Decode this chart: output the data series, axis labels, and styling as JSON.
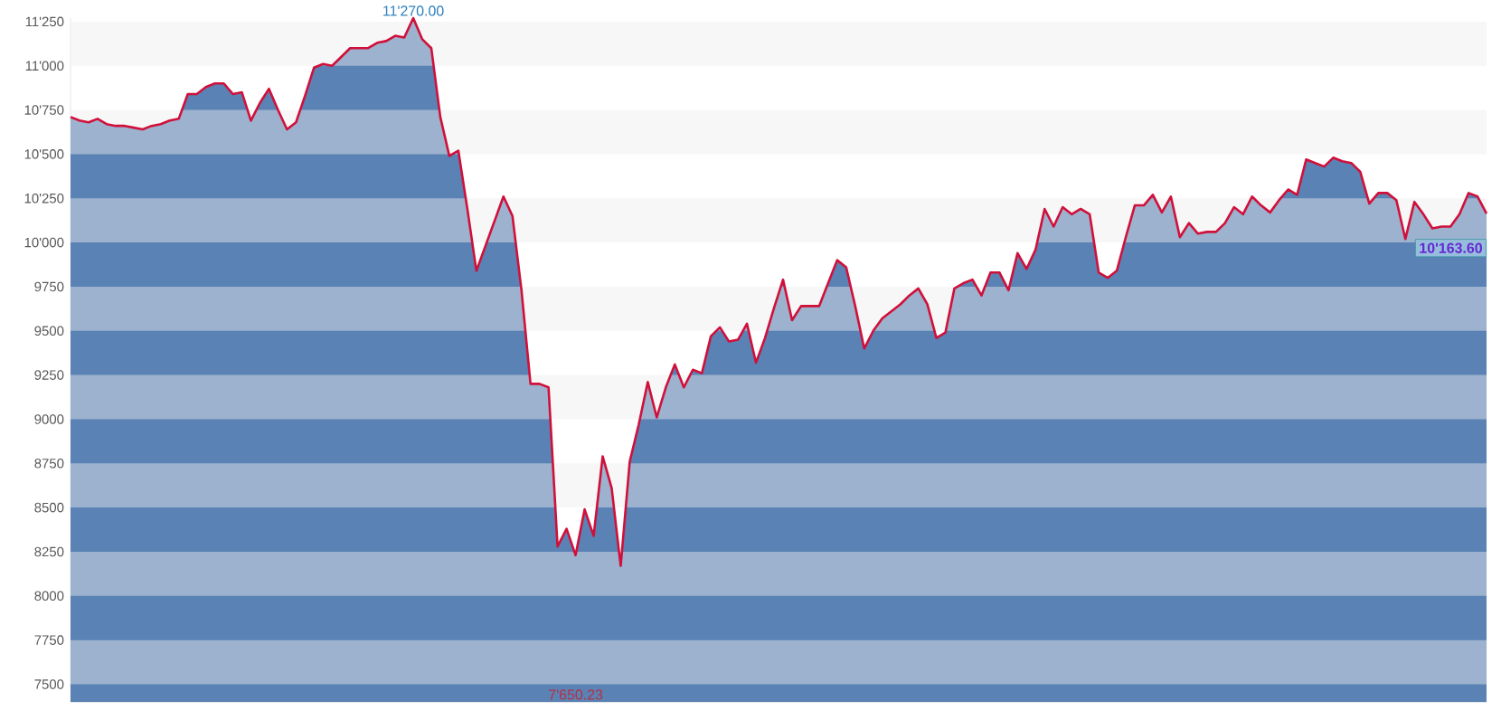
{
  "chart_data": {
    "type": "area",
    "categories": [
      null,
      null,
      null,
      null,
      null,
      null,
      null,
      null,
      null,
      null,
      null,
      null,
      null,
      null,
      null,
      null,
      null,
      null,
      null,
      null,
      null,
      null,
      null,
      null,
      null,
      null,
      null,
      null,
      null,
      null,
      null,
      null,
      null,
      null,
      null,
      null,
      null,
      null,
      null,
      null,
      null,
      null,
      null,
      null,
      null,
      null,
      null,
      null,
      null,
      null,
      null,
      null,
      null,
      null,
      null,
      null,
      null,
      null,
      null,
      null,
      null,
      null,
      null,
      null,
      null,
      null,
      null,
      null,
      null,
      null,
      null,
      null,
      null,
      null,
      null,
      null,
      null,
      null,
      null,
      null,
      null,
      null,
      null,
      null,
      null,
      null,
      null,
      null,
      null,
      null,
      null,
      null,
      null,
      null,
      null,
      null,
      null,
      null,
      null,
      null,
      null,
      null,
      null,
      null,
      null,
      null,
      null,
      null,
      null,
      null,
      null,
      null,
      null,
      null,
      null,
      null,
      null,
      null,
      null,
      null,
      null,
      null,
      null,
      null,
      null,
      null,
      null,
      null,
      null,
      null,
      null,
      null,
      null,
      null,
      null,
      null,
      null,
      null,
      null,
      null,
      null,
      null,
      null,
      null,
      null,
      null,
      null,
      null,
      null,
      null,
      null,
      null,
      null,
      null,
      null,
      null,
      null,
      null
    ],
    "series": [
      {
        "color": "#5a82b4",
        "values": [
          10710,
          10690,
          10680,
          10700,
          10670,
          10660,
          10660,
          10650,
          10640,
          10660,
          10670,
          10690,
          10700,
          10840,
          10840,
          10880,
          10900,
          10900,
          10840,
          10850,
          10690,
          10790,
          10870,
          10750,
          10640,
          10680,
          10830,
          10990,
          11010,
          11000,
          11050,
          11100,
          11100,
          11100,
          11130,
          11140,
          11170,
          11160,
          11270,
          11150,
          11100,
          10710,
          10490,
          10520,
          10190,
          9840,
          9980,
          10120,
          10260,
          10150,
          9730,
          9200,
          9200,
          9180,
          8280,
          8380,
          8230,
          8490,
          8340,
          8790,
          8610,
          8170,
          8760,
          8970,
          9210,
          9010,
          9180,
          9310,
          9180,
          9280,
          9260,
          9470,
          9520,
          9440,
          9450,
          9540,
          9320,
          9460,
          9630,
          9790,
          9560,
          9640,
          9640,
          9640,
          9770,
          9900,
          9860,
          9640,
          9400,
          9500,
          9570,
          9610,
          9650,
          9700,
          9740,
          9650,
          9460,
          9490,
          9740,
          9770,
          9790,
          9700,
          9830,
          9830,
          9730,
          9940,
          9850,
          9960,
          10190,
          10090,
          10200,
          10160,
          10190,
          10160,
          9830,
          9800,
          9840,
          10030,
          10210,
          10210,
          10270,
          10170,
          10260,
          10030,
          10110,
          10050,
          10060,
          10060,
          10110,
          10200,
          10160,
          10260,
          10210,
          10170,
          10240,
          10300,
          10270,
          10470,
          10450,
          10430,
          10480,
          10460,
          10450,
          10400,
          10220,
          10280,
          10280,
          10240,
          10020,
          10230,
          10160,
          10080,
          10090,
          10090,
          10160,
          10280,
          10260,
          10163.6
        ]
      },
      {
        "type": "line",
        "color": "#d0103a",
        "values": [
          10710,
          10690,
          10680,
          10700,
          10670,
          10660,
          10660,
          10650,
          10640,
          10660,
          10670,
          10690,
          10700,
          10840,
          10840,
          10880,
          10900,
          10900,
          10840,
          10850,
          10690,
          10790,
          10870,
          10750,
          10640,
          10680,
          10830,
          10990,
          11010,
          11000,
          11050,
          11100,
          11100,
          11100,
          11130,
          11140,
          11170,
          11160,
          11270,
          11150,
          11100,
          10710,
          10490,
          10520,
          10190,
          9840,
          9980,
          10120,
          10260,
          10150,
          9730,
          9200,
          9200,
          9180,
          8280,
          8380,
          8230,
          8490,
          8340,
          8790,
          8610,
          8170,
          8760,
          8970,
          9210,
          9010,
          9180,
          9310,
          9180,
          9280,
          9260,
          9470,
          9520,
          9440,
          9450,
          9540,
          9320,
          9460,
          9630,
          9790,
          9560,
          9640,
          9640,
          9640,
          9770,
          9900,
          9860,
          9640,
          9400,
          9500,
          9570,
          9610,
          9650,
          9700,
          9740,
          9650,
          9460,
          9490,
          9740,
          9770,
          9790,
          9700,
          9830,
          9830,
          9730,
          9940,
          9850,
          9960,
          10190,
          10090,
          10200,
          10160,
          10190,
          10160,
          9830,
          9800,
          9840,
          10030,
          10210,
          10210,
          10270,
          10170,
          10260,
          10030,
          10110,
          10050,
          10060,
          10060,
          10110,
          10200,
          10160,
          10260,
          10210,
          10170,
          10240,
          10300,
          10270,
          10470,
          10450,
          10430,
          10480,
          10460,
          10450,
          10400,
          10220,
          10280,
          10280,
          10240,
          10020,
          10230,
          10160,
          10080,
          10090,
          10090,
          10160,
          10280,
          10260,
          10163.6
        ]
      }
    ],
    "ylim": [
      7400,
      11270
    ],
    "yticks": [
      7500,
      7750,
      8000,
      8250,
      8500,
      8750,
      9000,
      9250,
      9500,
      9750,
      {
        "value": 10000,
        "label": "10'000"
      },
      {
        "value": 10250,
        "label": "10'250"
      },
      {
        "value": 10500,
        "label": "10'500"
      },
      {
        "value": 10750,
        "label": "10'750"
      },
      {
        "value": 11000,
        "label": "11'000"
      },
      {
        "value": 11250,
        "label": "11'250"
      }
    ],
    "tick_labels": "y",
    "bands": [
      {
        "axis": "y",
        "from": 11000,
        "to": 11250,
        "color": "#eeeeee"
      },
      {
        "axis": "y",
        "from": 10500,
        "to": 10750,
        "color": "#eeeeee"
      },
      {
        "axis": "y",
        "from": 10000,
        "to": 10250,
        "color": "#eeeeee"
      },
      {
        "axis": "y",
        "from": 9500,
        "to": 9750,
        "color": "#eeeeee"
      },
      {
        "axis": "y",
        "from": 9000,
        "to": 9250,
        "color": "#eeeeee"
      },
      {
        "axis": "y",
        "from": 8500,
        "to": 8750,
        "color": "#eeeeee"
      },
      {
        "axis": "y",
        "from": 8000,
        "to": 8250,
        "color": "#eeeeee"
      },
      {
        "axis": "y",
        "from": 7500,
        "to": 7750,
        "color": "#eeeeee"
      }
    ],
    "marker": "none",
    "line_style": "solid",
    "annotations": [
      "11'270.00",
      "7'650.23",
      "10'163.60"
    ]
  }
}
